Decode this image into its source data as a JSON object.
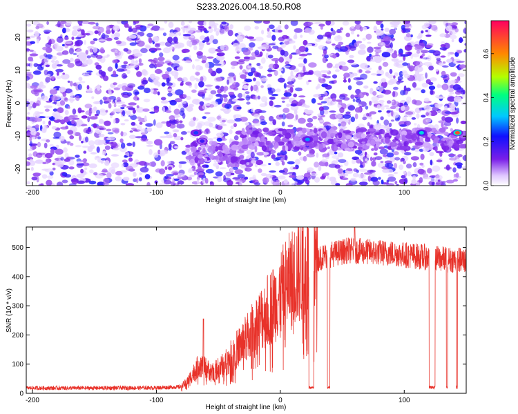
{
  "title": "S233.2026.004.18.50.R08",
  "colors": {
    "snr_line": "#e8322a",
    "spectrogram_base": "#7a1fe8",
    "colormap": [
      "#ffffff",
      "#d8b4ff",
      "#7a1fe8",
      "#2018ff",
      "#00c8ff",
      "#00ff80",
      "#b4ff00",
      "#ff8800",
      "#ff0060"
    ]
  },
  "chart_data": [
    {
      "type": "heatmap",
      "xlabel": "Height of straight line (km)",
      "ylabel": "Frequency (Hz)",
      "xlim": [
        -205,
        150
      ],
      "ylim": [
        -25,
        25
      ],
      "x_ticks": [
        -200,
        -100,
        0,
        100
      ],
      "y_ticks": [
        -20,
        -10,
        0,
        10,
        20
      ],
      "colorbar": {
        "label": "Normalized spectral amplitude",
        "range": [
          0,
          0.75
        ],
        "ticks": [
          0.0,
          0.2,
          0.4,
          0.6
        ]
      },
      "signal_band": {
        "frequency_start_hz": -13,
        "frequency_end_hz": -9,
        "height_start_km": -75,
        "height_end_km": 150
      },
      "hotspots": [
        {
          "x": -68,
          "y": -9,
          "amplitude": 0.3
        },
        {
          "x": -63,
          "y": -11.5,
          "amplitude": 0.25
        },
        {
          "x": 22,
          "y": -11,
          "amplitude": 0.35
        },
        {
          "x": 114,
          "y": -9,
          "amplitude": 0.4
        },
        {
          "x": 143,
          "y": -9,
          "amplitude": 0.7
        }
      ]
    },
    {
      "type": "line",
      "xlabel": "Height of straight line (km)",
      "ylabel": "SNR (10 * v/v)",
      "xlim": [
        -205,
        150
      ],
      "ylim": [
        0,
        570
      ],
      "x_ticks": [
        -200,
        -100,
        0,
        100
      ],
      "y_ticks": [
        0,
        100,
        200,
        300,
        400,
        500
      ],
      "trend": [
        [
          -205,
          18
        ],
        [
          -150,
          18
        ],
        [
          -100,
          19
        ],
        [
          -80,
          22
        ],
        [
          -75,
          40
        ],
        [
          -65,
          100
        ],
        [
          -55,
          70
        ],
        [
          -45,
          100
        ],
        [
          -35,
          150
        ],
        [
          -25,
          200
        ],
        [
          -15,
          260
        ],
        [
          -5,
          310
        ],
        [
          5,
          370
        ],
        [
          15,
          420
        ],
        [
          25,
          450
        ],
        [
          35,
          470
        ],
        [
          45,
          480
        ],
        [
          55,
          490
        ],
        [
          70,
          485
        ],
        [
          90,
          480
        ],
        [
          110,
          470
        ],
        [
          130,
          460
        ],
        [
          150,
          455
        ]
      ],
      "dropouts": [
        {
          "x_start": 23,
          "x_end": 27
        },
        {
          "x_start": 38,
          "x_end": 40
        },
        {
          "x_start": 120,
          "x_end": 125
        },
        {
          "x_start": 134,
          "x_end": 135
        },
        {
          "x_start": 142,
          "x_end": 143
        }
      ],
      "spikes": [
        {
          "x": -62,
          "y": 255
        },
        {
          "x": 60,
          "y": 570
        }
      ]
    }
  ]
}
